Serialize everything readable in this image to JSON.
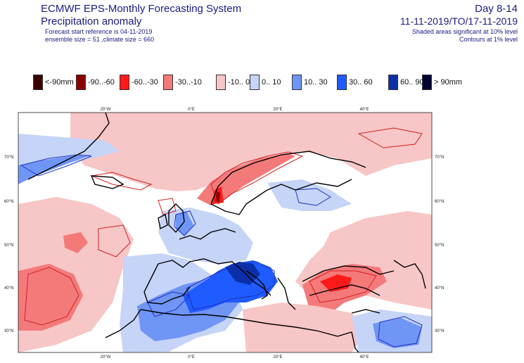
{
  "header": {
    "title": "ECMWF EPS-Monthly Forecasting System",
    "subtitle": "Precipitation anomaly",
    "forecast_start": "Forecast start reference is 04-11-2019",
    "ensemble": "ensemble size = 51  ,climate size = 660",
    "day_range": "Day 8-14",
    "period": "11-11-2019/TO/17-11-2019",
    "significance_shaded": "Shaded areas significant at 10% level",
    "significance_contours": "Contours at 1% level"
  },
  "legend": [
    {
      "label": "<-90mm",
      "color": "#3a0000"
    },
    {
      "label": "-90..-60",
      "color": "#8b0000"
    },
    {
      "label": "-60..-30",
      "color": "#ff1a1a"
    },
    {
      "label": "-30..-10",
      "color": "#f47a7a"
    },
    {
      "label": "-10..  0",
      "color": "#f7c6c6"
    },
    {
      "label": "0.. 10",
      "color": "#c6d4f7"
    },
    {
      "label": "10.. 30",
      "color": "#6f95f5"
    },
    {
      "label": "30.. 60",
      "color": "#1f5bff"
    },
    {
      "label": "60.. 90",
      "color": "#0a2fa8"
    },
    {
      "label": "> 90mm",
      "color": "#000033"
    }
  ],
  "map": {
    "lon_labels": [
      "20°W",
      "0°E",
      "20°E",
      "40°E"
    ],
    "lat_labels": [
      "70°N",
      "60°N",
      "50°N",
      "40°N",
      "30°N"
    ]
  }
}
